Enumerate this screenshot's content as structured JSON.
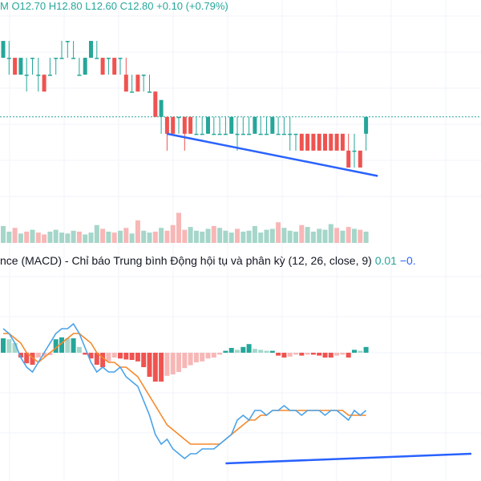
{
  "legend": {
    "ohlc_text": "M O12.70 H12.80 L12.60 C12.80 +0.10 (+0.79%)",
    "macd_title": "nce (MACD) - Chỉ báo Trung bình Động hội tụ và phân kỳ (12, 26, close, 9)",
    "macd_value": "0.01",
    "macd_value2": "−0."
  },
  "colors": {
    "up": "#26a69a",
    "down": "#ef5350",
    "up_light": "#a5d6c9",
    "down_light": "#f7b7b6",
    "macd_line": "#4aa3ea",
    "signal_line": "#f5892b",
    "trendline": "#2962ff",
    "last_price_line": "#26a69a",
    "grid": "#f0f3fa"
  },
  "chart_data": [
    {
      "type": "candlestick",
      "title": "",
      "open": [
        13.15,
        13.15,
        13.15,
        13.05,
        13.05,
        13.15,
        13.05,
        13.05,
        13.05,
        13.15,
        13.15,
        13.25,
        13.15,
        13.05,
        13.05,
        13.15,
        13.15,
        13.15,
        13.15,
        13.15,
        13.15,
        13.05,
        12.95,
        13.05,
        13.05,
        12.95,
        12.95,
        12.8,
        12.8,
        12.8,
        12.8,
        12.8,
        12.8,
        12.7,
        12.7,
        12.7,
        12.7,
        12.7,
        12.7,
        12.7,
        12.7,
        12.7,
        12.7,
        12.7,
        12.7,
        12.7,
        12.7,
        12.7,
        12.7,
        12.7,
        12.7,
        12.7,
        12.7,
        12.7,
        12.7,
        12.7,
        12.7,
        12.7,
        12.7,
        12.6,
        12.6,
        12.6,
        12.7
      ],
      "close": [
        13.25,
        13.15,
        13.05,
        13.15,
        13.05,
        13.15,
        13.05,
        12.95,
        13.05,
        13.15,
        13.15,
        13.25,
        13.15,
        13.05,
        13.15,
        13.25,
        13.15,
        13.05,
        13.15,
        13.05,
        13.15,
        12.95,
        12.95,
        12.95,
        13.05,
        12.95,
        12.8,
        12.9,
        12.7,
        12.7,
        12.8,
        12.7,
        12.7,
        12.7,
        12.7,
        12.8,
        12.7,
        12.7,
        12.7,
        12.8,
        12.7,
        12.7,
        12.7,
        12.8,
        12.7,
        12.7,
        12.8,
        12.7,
        12.7,
        12.7,
        12.7,
        12.6,
        12.6,
        12.6,
        12.6,
        12.6,
        12.6,
        12.6,
        12.6,
        12.5,
        12.6,
        12.5,
        12.8
      ],
      "high": [
        13.25,
        13.25,
        13.15,
        13.15,
        13.15,
        13.15,
        13.15,
        13.05,
        13.15,
        13.15,
        13.25,
        13.25,
        13.25,
        13.15,
        13.15,
        13.25,
        13.25,
        13.15,
        13.15,
        13.15,
        13.15,
        13.15,
        13.05,
        13.05,
        13.05,
        13.05,
        12.95,
        12.9,
        12.8,
        12.8,
        12.8,
        12.8,
        12.8,
        12.8,
        12.8,
        12.8,
        12.8,
        12.8,
        12.8,
        12.8,
        12.8,
        12.8,
        12.8,
        12.8,
        12.8,
        12.8,
        12.8,
        12.8,
        12.8,
        12.8,
        12.7,
        12.7,
        12.7,
        12.7,
        12.7,
        12.7,
        12.7,
        12.7,
        12.7,
        12.7,
        12.7,
        12.6,
        12.8
      ],
      "low": [
        13.15,
        13.05,
        13.05,
        13.05,
        12.95,
        13.05,
        12.95,
        12.95,
        13.05,
        13.05,
        13.15,
        13.15,
        13.15,
        13.05,
        13.05,
        13.15,
        13.15,
        13.05,
        13.05,
        13.05,
        13.05,
        12.95,
        12.95,
        12.95,
        12.95,
        12.95,
        12.8,
        12.7,
        12.6,
        12.7,
        12.7,
        12.6,
        12.7,
        12.7,
        12.7,
        12.7,
        12.7,
        12.7,
        12.7,
        12.7,
        12.6,
        12.7,
        12.7,
        12.7,
        12.7,
        12.7,
        12.7,
        12.7,
        12.7,
        12.6,
        12.6,
        12.6,
        12.6,
        12.6,
        12.6,
        12.6,
        12.6,
        12.6,
        12.6,
        12.5,
        12.5,
        12.5,
        12.6
      ],
      "last_price": 12.8,
      "trendline": [
        [
          28,
          12.7
        ],
        [
          64,
          12.45
        ]
      ],
      "grid": true
    },
    {
      "type": "bar",
      "title": "",
      "values": [
        1.8,
        1.2,
        1.6,
        1.0,
        1.2,
        1.4,
        1.1,
        0.9,
        1.2,
        1.4,
        1.1,
        1.0,
        1.3,
        1.2,
        0.9,
        1.1,
        1.9,
        1.5,
        1.2,
        1.1,
        1.3,
        1.6,
        1.0,
        2.4,
        1.3,
        1.1,
        1.2,
        1.6,
        1.3,
        1.9,
        3.2,
        1.4,
        1.7,
        1.3,
        1.2,
        1.5,
        1.8,
        1.6,
        1.3,
        1.1,
        1.5,
        1.2,
        1.3,
        1.8,
        1.1,
        1.4,
        1.5,
        2.2,
        1.6,
        1.3,
        1.2,
        1.9,
        1.7,
        1.2,
        1.5,
        1.4,
        2.0,
        1.6,
        1.3,
        1.7,
        1.5,
        1.4,
        1.2
      ],
      "up": [
        1,
        1,
        0,
        1,
        0,
        1,
        0,
        0,
        1,
        1,
        1,
        1,
        1,
        0,
        1,
        1,
        1,
        0,
        1,
        0,
        1,
        0,
        1,
        0,
        1,
        1,
        0,
        1,
        0,
        0,
        0,
        0,
        1,
        1,
        1,
        1,
        0,
        1,
        1,
        1,
        0,
        1,
        1,
        1,
        1,
        1,
        1,
        0,
        1,
        1,
        1,
        0,
        1,
        1,
        1,
        1,
        1,
        0,
        1,
        0,
        1,
        0,
        1
      ],
      "grid": true
    },
    {
      "type": "line",
      "title": "",
      "series": [
        {
          "values": [
            0.05,
            0.04,
            0.02,
            -0.01,
            -0.03,
            -0.04,
            -0.02,
            0.0,
            0.02,
            0.04,
            0.05,
            0.05,
            0.06,
            0.04,
            0.01,
            -0.02,
            -0.04,
            -0.03,
            -0.04,
            -0.04,
            -0.03,
            -0.05,
            -0.06,
            -0.07,
            -0.1,
            -0.13,
            -0.17,
            -0.19,
            -0.18,
            -0.2,
            -0.21,
            -0.22,
            -0.21,
            -0.21,
            -0.2,
            -0.2,
            -0.2,
            -0.19,
            -0.18,
            -0.17,
            -0.14,
            -0.13,
            -0.14,
            -0.12,
            -0.12,
            -0.13,
            -0.12,
            -0.12,
            -0.11,
            -0.12,
            -0.12,
            -0.13,
            -0.12,
            -0.12,
            -0.12,
            -0.13,
            -0.12,
            -0.12,
            -0.13,
            -0.14,
            -0.12,
            -0.13,
            -0.12
          ]
        },
        {
          "values": [
            0.04,
            0.04,
            0.03,
            0.02,
            0.0,
            -0.01,
            -0.02,
            -0.01,
            0.0,
            0.01,
            0.02,
            0.03,
            0.04,
            0.04,
            0.03,
            0.02,
            0.0,
            -0.01,
            -0.02,
            -0.02,
            -0.03,
            -0.03,
            -0.04,
            -0.05,
            -0.07,
            -0.09,
            -0.11,
            -0.13,
            -0.15,
            -0.16,
            -0.17,
            -0.18,
            -0.19,
            -0.19,
            -0.19,
            -0.19,
            -0.19,
            -0.19,
            -0.18,
            -0.17,
            -0.16,
            -0.15,
            -0.14,
            -0.14,
            -0.13,
            -0.13,
            -0.12,
            -0.12,
            -0.12,
            -0.12,
            -0.12,
            -0.12,
            -0.12,
            -0.12,
            -0.12,
            -0.12,
            -0.12,
            -0.12,
            -0.12,
            -0.13,
            -0.13,
            -0.13,
            -0.13
          ]
        },
        {
          "type": "bar",
          "values": [
            0.03,
            0.028,
            0.02,
            -0.01,
            -0.022,
            -0.025,
            -0.01,
            -0.008,
            -0.005,
            0.028,
            0.032,
            0.03,
            0.03,
            0.012,
            -0.004,
            -0.012,
            -0.025,
            -0.03,
            -0.018,
            -0.01,
            -0.012,
            -0.014,
            -0.015,
            -0.018,
            -0.03,
            -0.05,
            -0.06,
            -0.06,
            -0.048,
            -0.045,
            -0.04,
            -0.032,
            -0.026,
            -0.02,
            -0.018,
            -0.012,
            -0.01,
            -0.004,
            0.004,
            0.01,
            0.006,
            0.012,
            0.018,
            0.008,
            0.006,
            0.004,
            0.004,
            -0.006,
            -0.01,
            -0.008,
            -0.004,
            -0.006,
            -0.004,
            -0.004,
            -0.006,
            -0.01,
            -0.01,
            -0.006,
            -0.004,
            -0.01,
            0.006,
            0.004,
            0.012
          ]
        }
      ],
      "ylim": [
        -0.25,
        0.1
      ],
      "trendline": [
        [
          38,
          -0.23
        ],
        [
          80,
          -0.21
        ]
      ],
      "grid": true
    }
  ]
}
